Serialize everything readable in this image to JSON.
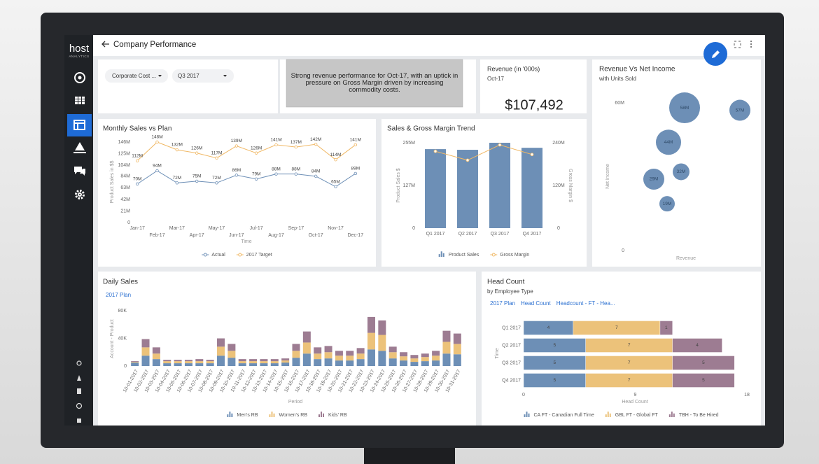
{
  "app": {
    "logo": "host",
    "logo_sub": "ANALYTICS",
    "page_title": "Company Performance"
  },
  "filters": [
    "Corporate Cost ...",
    "Q3 2017"
  ],
  "note": "Strong revenue performance for Oct-17, with an uptick in pressure on Gross Margin driven by increasing commodity costs.",
  "kpi": {
    "title": "Revenue (in '000s)",
    "period": "Oct-17",
    "value": "$107,492"
  },
  "chart_data": [
    {
      "type": "line",
      "title": "Monthly Sales vs Plan",
      "x_label": "Time",
      "y_label": "Product Sales in $$",
      "categories": [
        "Jan-17",
        "Feb-17",
        "Mar-17",
        "Apr-17",
        "May-17",
        "Jun-17",
        "Jul-17",
        "Aug-17",
        "Sep-17",
        "Oct-17",
        "Nov-17",
        "Dec-17"
      ],
      "series": [
        {
          "name": "Actual",
          "color": "#6d8fb6",
          "values": [
            70,
            94,
            72,
            75,
            72,
            86,
            79,
            88,
            88,
            84,
            65,
            89
          ],
          "value_labels": [
            "70M",
            "94M",
            "72M",
            "75M",
            "72M",
            "86M",
            "79M",
            "88M",
            "88M",
            "84M",
            "65M",
            "89M"
          ]
        },
        {
          "name": "2017 Target",
          "color": "#f0b865",
          "values": [
            112,
            146,
            132,
            126,
            117,
            139,
            126,
            141,
            137,
            142,
            114,
            141
          ],
          "value_labels": [
            "112M",
            "146M",
            "132M",
            "126M",
            "117M",
            "139M",
            "126M",
            "141M",
            "137M",
            "142M",
            "114M",
            "141M"
          ]
        }
      ],
      "ylim": [
        0,
        146
      ],
      "yticks": [
        0,
        {
          "value": 21,
          "label": "21M"
        },
        {
          "value": 42,
          "label": "42M"
        },
        {
          "value": 63,
          "label": "63M"
        },
        {
          "value": 84,
          "label": "84M"
        },
        {
          "value": 104,
          "label": "104M"
        },
        {
          "value": 125,
          "label": "125M"
        },
        {
          "value": 146,
          "label": "146M"
        }
      ],
      "legend": "bottom"
    },
    {
      "type": "bar",
      "title": "Sales & Gross Margin Trend",
      "y_label": "Product Sales $",
      "y2_label": "Gross Margin $",
      "categories": [
        "Q1 2017",
        "Q2 2017",
        "Q3 2017",
        "Q4 2017"
      ],
      "series": [
        {
          "name": "Product Sales",
          "type": "bar",
          "color": "#6d8fb6",
          "values": [
            236,
            234,
            255,
            240
          ]
        },
        {
          "name": "Gross Margin",
          "type": "line",
          "axis": "y2",
          "color": "#f0b865",
          "values": [
            216,
            191,
            234,
            207
          ]
        }
      ],
      "ylim": [
        0,
        255
      ],
      "yticks": [
        0,
        {
          "value": 127,
          "label": "127M"
        },
        {
          "value": 255,
          "label": "255M"
        }
      ],
      "y2lim": [
        0,
        240
      ],
      "y2ticks": [
        0,
        {
          "value": 120,
          "label": "120M"
        },
        {
          "value": 240,
          "label": "240M"
        }
      ],
      "legend": "bottom"
    },
    {
      "type": "bubble",
      "title": "Revenue Vs Net Income",
      "subtitle": "with Units Sold",
      "x_label": "Revenue",
      "y_label": "Net Income",
      "series": [
        {
          "name": "Units Sold",
          "color": "#6d8fb6",
          "x": [
            49,
            88.5,
            37.5,
            46.5,
            27,
            36.5
          ],
          "values": [
            58,
            57,
            44,
            32,
            29,
            19
          ],
          "sizes": [
            22,
            15,
            18,
            12,
            15,
            11
          ],
          "value_labels": [
            "58M",
            "57M",
            "44M",
            "32M",
            "29M",
            "19M"
          ]
        }
      ],
      "xlim": [
        0,
        100
      ],
      "ylim": [
        0,
        60
      ],
      "yticks": [
        0,
        {
          "value": 60,
          "label": "60M"
        }
      ]
    },
    {
      "type": "stacked_bar",
      "title": "Daily Sales",
      "links": [
        "2017 Plan"
      ],
      "x_label": "Period",
      "y_label": "Account - Product",
      "categories": [
        "10-01-2017",
        "10-02-2017",
        "10-03-2017",
        "10-04-2017",
        "10-05-2017",
        "10-06-2017",
        "10-07-2017",
        "10-08-2017",
        "10-09-2017",
        "10-10-2017",
        "10-11-2017",
        "10-12-2017",
        "10-13-2017",
        "10-14-2017",
        "10-15-2017",
        "10-16-2017",
        "10-17-2017",
        "10-18-2017",
        "10-19-2017",
        "10-20-2017",
        "10-21-2017",
        "10-22-2017",
        "10-23-2017",
        "10-24-2017",
        "10-25-2017",
        "10-26-2017",
        "10-27-2017",
        "10-28-2017",
        "10-29-2017",
        "10-30-2017",
        "10-31-2017"
      ],
      "series": [
        {
          "name": "Men's RB",
          "color": "#6d8fb6",
          "values": [
            5,
            15,
            10,
            4,
            4,
            4,
            4,
            4,
            15,
            12,
            4,
            4,
            4,
            4,
            5,
            12,
            18,
            10,
            11,
            8,
            8,
            10,
            24,
            22,
            11,
            8,
            6,
            7,
            8,
            18,
            17
          ]
        },
        {
          "name": "Women's RB",
          "color": "#ecc27a",
          "values": [
            1,
            12,
            8,
            3,
            3,
            3,
            3,
            3,
            13,
            10,
            3,
            3,
            3,
            3,
            3,
            10,
            16,
            8,
            9,
            7,
            7,
            8,
            24,
            23,
            9,
            6,
            5,
            6,
            7,
            17,
            15
          ]
        },
        {
          "name": "Kids' RB",
          "color": "#9d7c92",
          "values": [
            1,
            12,
            9,
            2,
            2,
            2,
            3,
            2,
            12,
            10,
            3,
            3,
            3,
            3,
            3,
            10,
            16,
            9,
            9,
            7,
            7,
            8,
            23,
            21,
            8,
            6,
            5,
            5,
            7,
            16,
            15
          ]
        }
      ],
      "ylim": [
        0,
        80
      ],
      "yticks": [
        0,
        {
          "value": 40,
          "label": "40K"
        },
        {
          "value": 80,
          "label": "80K"
        }
      ],
      "legend": "bottom"
    },
    {
      "type": "stacked_barh",
      "title": "Head Count",
      "subtitle": "by Employee Type",
      "links": [
        "2017 Plan",
        "Head Count",
        "Headcount - FT - Hea..."
      ],
      "x_label": "Head Count",
      "y_label": "Time",
      "categories": [
        "Q1 2017",
        "Q2 2017",
        "Q3 2017",
        "Q4 2017"
      ],
      "series": [
        {
          "name": "CA FT - Canadian Full Time",
          "color": "#6d8fb6",
          "values": [
            4,
            5,
            5,
            5
          ]
        },
        {
          "name": "GBL FT - Global FT",
          "color": "#ecc27a",
          "values": [
            7,
            7,
            7,
            7
          ]
        },
        {
          "name": "TBH - To Be Hired",
          "color": "#9d7c92",
          "values": [
            1,
            4,
            5,
            5
          ]
        }
      ],
      "xlim": [
        0,
        18
      ],
      "xticks": [
        0,
        9,
        18
      ],
      "legend": "bottom"
    }
  ]
}
